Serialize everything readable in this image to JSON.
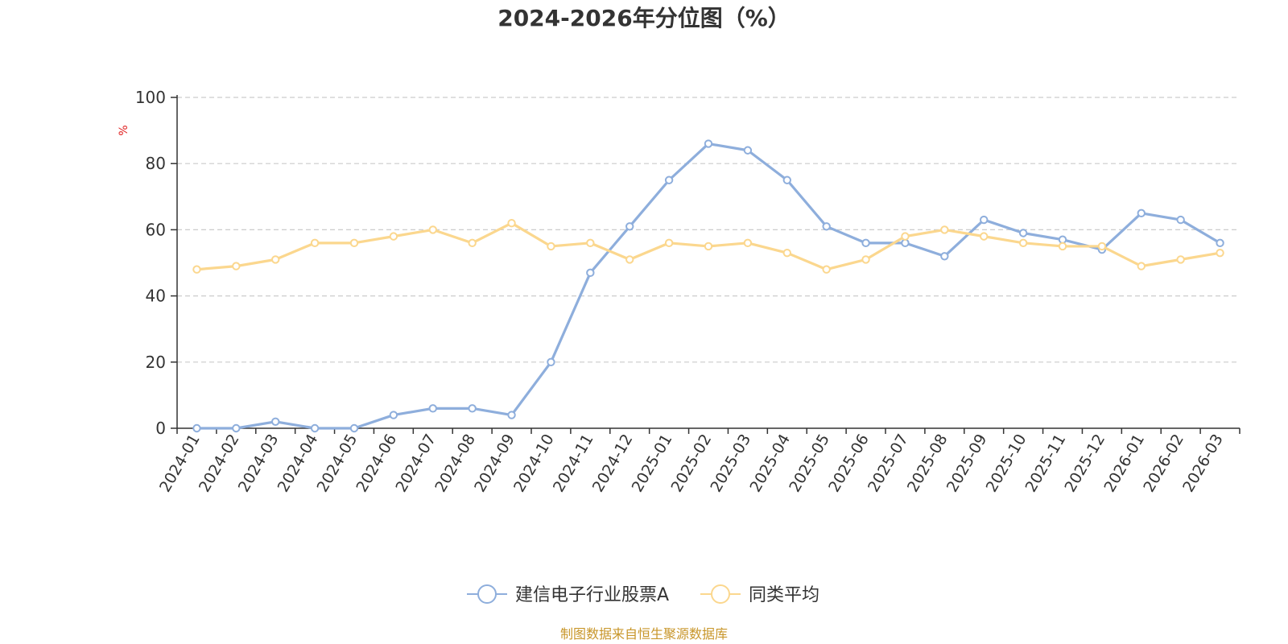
{
  "chart_data": {
    "type": "line",
    "title": "2024-2026年分位图（%）",
    "ylabel": "%",
    "ylim": [
      0,
      100
    ],
    "yticks": [
      0,
      20,
      40,
      60,
      80,
      100
    ],
    "grid": true,
    "legend_position": "bottom",
    "categories": [
      "2024-01",
      "2024-02",
      "2024-03",
      "2024-04",
      "2024-05",
      "2024-06",
      "2024-07",
      "2024-08",
      "2024-09",
      "2024-10",
      "2024-11",
      "2024-12",
      "2025-01",
      "2025-02",
      "2025-03",
      "2025-04",
      "2025-05",
      "2025-06",
      "2025-07",
      "2025-08",
      "2025-09",
      "2025-10",
      "2025-11",
      "2025-12",
      "2026-01",
      "2026-02",
      "2026-03"
    ],
    "series": [
      {
        "name": "建信电子行业股票A",
        "color": "#8eaedc",
        "values": [
          0,
          0,
          2,
          0,
          0,
          4,
          6,
          6,
          4,
          20,
          47,
          61,
          75,
          86,
          84,
          75,
          61,
          56,
          56,
          52,
          63,
          59,
          57,
          54,
          65,
          63,
          56
        ]
      },
      {
        "name": "同类平均",
        "color": "#fbd78e",
        "values": [
          48,
          49,
          51,
          56,
          56,
          58,
          60,
          56,
          62,
          55,
          56,
          51,
          56,
          55,
          56,
          53,
          48,
          51,
          58,
          60,
          58,
          56,
          55,
          55,
          49,
          51,
          53
        ]
      }
    ]
  },
  "colors": {
    "axis": "#333333",
    "grid": "#cccccc",
    "unit_label": "#e02020",
    "source": "#c8962a"
  },
  "footer": {
    "source": "制图数据来自恒生聚源数据库"
  }
}
